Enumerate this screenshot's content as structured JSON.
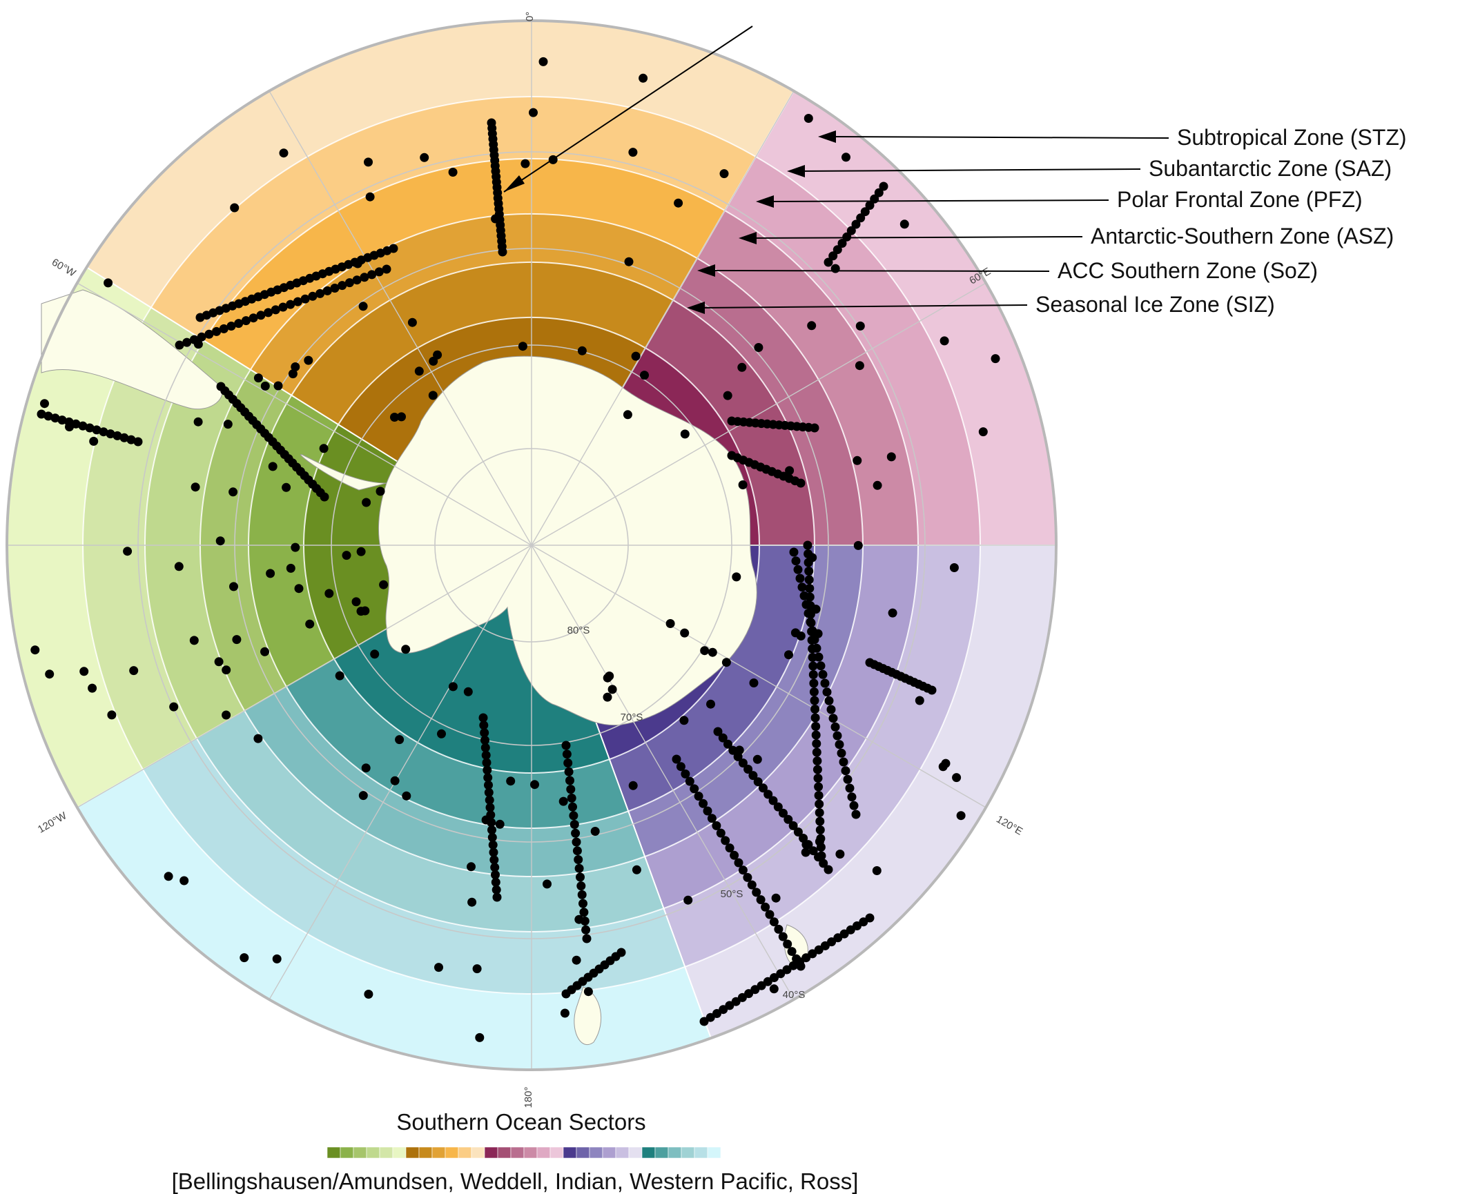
{
  "map": {
    "zones": [
      "Subtropical Zone (STZ)",
      "Subantarctic Zone (SAZ)",
      "Polar Frontal Zone (PFZ)",
      "Antarctic-Southern Zone (ASZ)",
      "ACC Southern Zone (SoZ)",
      "Seasonal Ice Zone (SIZ)"
    ],
    "longitude_labels": [
      "0°",
      "60°E",
      "120°E",
      "180°",
      "120°W",
      "60°W"
    ],
    "latitude_labels": [
      "80°S",
      "70°S",
      "50°S",
      "40°S"
    ],
    "sectors": [
      {
        "name": "Bellingshausen/Amundsen",
        "colors": [
          "#6a8f22",
          "#8bb24a",
          "#a6c56b",
          "#bfd98e",
          "#d3e6a8",
          "#e8f6c3"
        ]
      },
      {
        "name": "Weddell",
        "colors": [
          "#ad720c",
          "#c78a1c",
          "#e1a235",
          "#f7b64a",
          "#fbcd85",
          "#fbe3bd"
        ]
      },
      {
        "name": "Indian",
        "colors": [
          "#8b2757",
          "#a44f74",
          "#b96e8f",
          "#cc8aa6",
          "#dfa9c3",
          "#ecc6da"
        ]
      },
      {
        "name": "Western Pacific",
        "colors": [
          "#4b3a8d",
          "#6e63a9",
          "#8e85bf",
          "#ad9fd0",
          "#c9bfe1",
          "#e4e0f0"
        ]
      },
      {
        "name": "Ross",
        "colors": [
          "#1f807e",
          "#4da09f",
          "#7ebec0",
          "#9fd2d4",
          "#b7e0e6",
          "#d4f6fb"
        ]
      }
    ],
    "land_color": "#fcfde9",
    "station_color": "#000000"
  },
  "legend": {
    "title": "Southern Ocean Sectors",
    "subtitle": "[Bellingshausen/Amundsen, Weddell, Indian, Western Pacific, Ross]"
  }
}
